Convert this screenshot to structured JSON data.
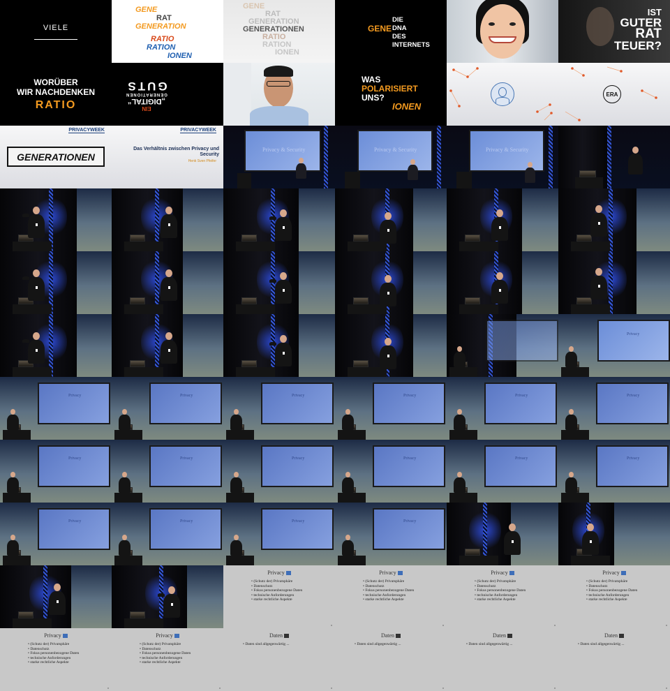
{
  "tiles": {
    "viele": "VIELE",
    "gene_stack": [
      "GENE",
      "RAT",
      "GENERATION",
      "RATIO",
      "RATION",
      "IONEN"
    ],
    "ghost_stack": [
      "GENE",
      "RAT",
      "GENERATION",
      "GENERATIONEN",
      "RATIO",
      "RATION",
      "IONEN"
    ],
    "dna_left": "GENE",
    "dna_right": [
      "DIE",
      "DNA",
      "DES",
      "INTERNETS"
    ],
    "rat_teuer": [
      "IST",
      "GUTER",
      "RAT",
      "TEUER?"
    ],
    "woruber": [
      "WORÜBER",
      "WIR NACHDENKEN"
    ],
    "woruber_ratio": "RATIO",
    "mirror_text": [
      "EIN",
      "„DIGITAL“",
      "GENERATIONEN"
    ],
    "mirror_big": "GUTS",
    "polar": [
      "WAS",
      "POLARISIERT",
      "UNS?"
    ],
    "polar_ionen": "IONEN",
    "era_badge": "ERA",
    "generationen_box": "GENERATIONEN",
    "pw_logo": "PRIVACYWEEK",
    "subtitle_title": "Das Verhältnis zwischen Privacy und Security",
    "subtitle_speaker": "Henk Sven Pfeifer",
    "stage_screen_title": "Privacy & Security",
    "screen_privacy": "Privacy"
  },
  "privacy_slide": {
    "title": "Privacy",
    "bullets": [
      "(Schutz der) Privatsphäre",
      "Datenschutz",
      "Fokus personenbezogene Daten",
      "technische Anforderungen",
      "starke rechtliche Aspekte"
    ]
  },
  "daten_slide": {
    "title": "Daten",
    "bullets": [
      "Daten sind allgegenwärtig ..."
    ]
  },
  "colors": {
    "accent_orange": "#f39a20",
    "accent_blue": "#1f5fb0",
    "stage_blue": "#2b48d1"
  }
}
